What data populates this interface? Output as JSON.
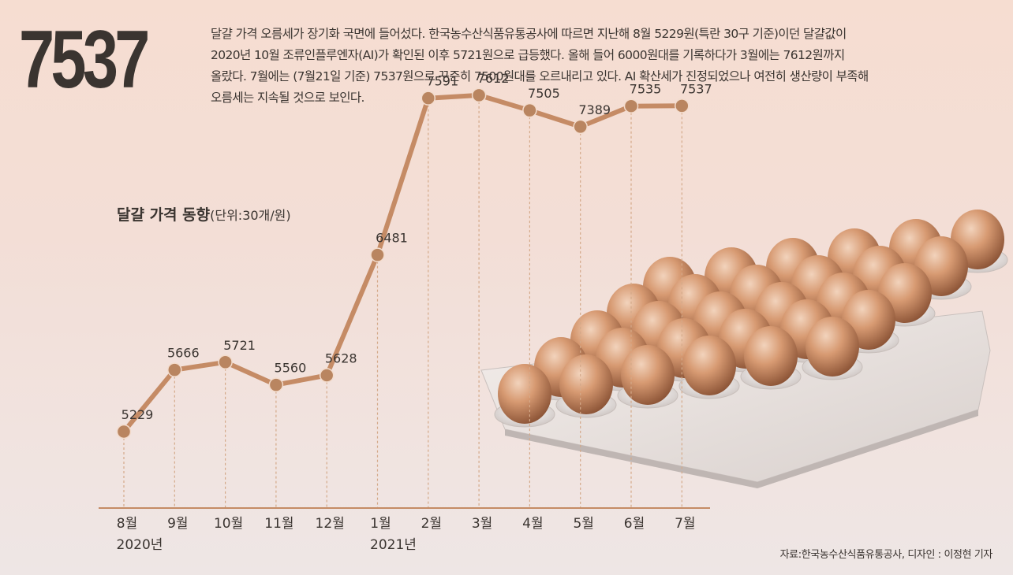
{
  "headline": "7537",
  "summary_lines": [
    "달걀 가격 오름세가 장기화 국면에 들어섰다. 한국농수산식품유통공사에 따르면 지난해 8월 5229원(특란 30구 기준)이던 달걀값이",
    "2020년 10월 조류인플루엔자(AI)가 확인된 이후 5721원으로 급등했다. 올해 들어 6000원대를 기록하다가 3월에는 7612원까지",
    "올랐다. 7월에는 (7월21일 기준) 7537원으로 꾸준히 7500원대를 오르내리고 있다. AI 확산세가 진정되었으나 여전히 생산량이 부족해",
    "오름세는 지속될 것으로 보인다."
  ],
  "source": "자료:한국농수산식품유통공사, 디자인 : 이정현 기자",
  "colors": {
    "line": "#c58b65",
    "marker": "#b98560",
    "text": "#3a3430",
    "dashed": "#d4a989"
  },
  "chart_data": {
    "type": "line",
    "title": "달걀 가격 동향",
    "unit": "(단위:30개/원)",
    "categories": [
      "8월",
      "9월",
      "10월",
      "11월",
      "12월",
      "1월",
      "2월",
      "3월",
      "4월",
      "5월",
      "6월",
      "7월"
    ],
    "year_labels": [
      {
        "index": 0,
        "label": "2020년"
      },
      {
        "index": 5,
        "label": "2021년"
      }
    ],
    "values": [
      5229,
      5666,
      5721,
      5560,
      5628,
      6481,
      7591,
      7612,
      7505,
      7389,
      7535,
      7537
    ],
    "value_labels": [
      "5229",
      "5666",
      "5721",
      "5560",
      "5628",
      "6481",
      "7591",
      "7612",
      "7505",
      "7389",
      "7535",
      "7537"
    ],
    "ylim": [
      4760,
      8030
    ],
    "grid": false,
    "legend": "none"
  }
}
